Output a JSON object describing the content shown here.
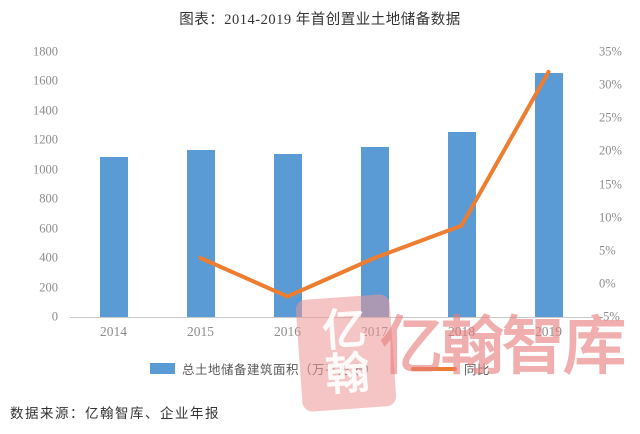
{
  "title": "图表：2014-2019 年首创置业土地储备数据",
  "source": "数据来源：亿翰智库、企业年报",
  "watermark": {
    "logo_top": "亿",
    "logo_bottom": "翰",
    "text": "亿翰智库"
  },
  "colors": {
    "bar": "#5B9BD5",
    "line": "#ED7D31",
    "axis_text": "#8C8C8C",
    "watermark": "#E77C7C",
    "axis_line": "#C9C9C9"
  },
  "chart_data": {
    "type": "bar",
    "subtype": "bar-line-combo",
    "title": "图表：2014-2019 年首创置业土地储备数据",
    "categories": [
      "2014",
      "2015",
      "2016",
      "2017",
      "2018",
      "2019"
    ],
    "series": [
      {
        "name": "总土地储备建筑面积（万平方米）",
        "type": "bar",
        "axis": "left",
        "values": [
          1089,
          1132,
          1110,
          1153,
          1254,
          1656
        ]
      },
      {
        "name": "同比",
        "type": "line",
        "axis": "right",
        "values": [
          null,
          3.9,
          -1.9,
          3.9,
          8.8,
          32.0
        ]
      }
    ],
    "left_axis": {
      "min": 0,
      "max": 1800,
      "step": 200,
      "ticks": [
        "1800",
        "1600",
        "1400",
        "1200",
        "1000",
        "800",
        "600",
        "400",
        "200",
        "0"
      ]
    },
    "right_axis": {
      "min": -5,
      "max": 35,
      "step": 5,
      "unit": "%",
      "ticks": [
        "35%",
        "30%",
        "25%",
        "20%",
        "15%",
        "10%",
        "5%",
        "0%",
        "-5%"
      ]
    },
    "legend": [
      "总土地储备建筑面积（万平方米）",
      "同比"
    ],
    "legend_position": "bottom",
    "grid": false
  }
}
